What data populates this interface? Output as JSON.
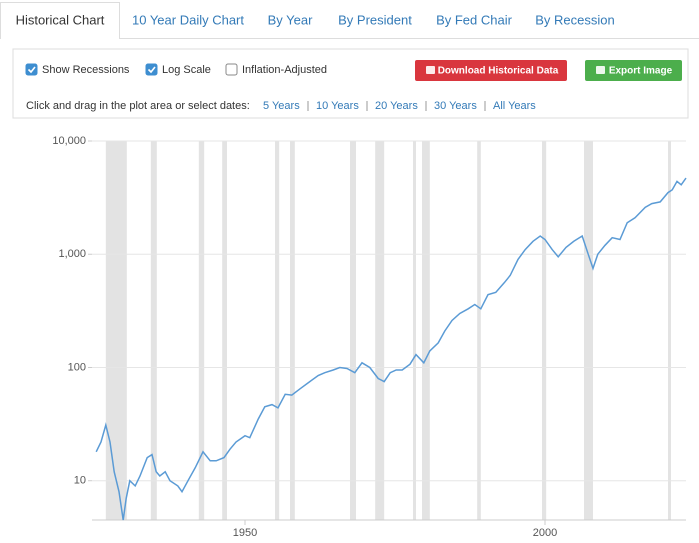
{
  "tabs": [
    "Historical Chart",
    "10 Year Daily Chart",
    "By Year",
    "By President",
    "By Fed Chair",
    "By Recession"
  ],
  "active_tab": 0,
  "controls": {
    "checkboxes": [
      {
        "label": "Show Recessions",
        "checked": true
      },
      {
        "label": "Log Scale",
        "checked": true
      },
      {
        "label": "Inflation-Adjusted",
        "checked": false
      }
    ],
    "buttons": [
      {
        "label": "Download Historical Data",
        "color": "#d9363e"
      },
      {
        "label": "Export Image",
        "color": "#4cae4c"
      }
    ],
    "date_prompt": "Click and drag in the plot area or select dates:",
    "date_ranges": [
      "5 Years",
      "10 Years",
      "20 Years",
      "30 Years",
      "All Years"
    ]
  },
  "chart_data": {
    "type": "line",
    "color": "#5b9bd5",
    "log_scale": true,
    "grid": true,
    "recession_color": "#e3e3e3",
    "xlim": [
      1924.5,
      2023.5
    ],
    "xticks": [
      1950,
      2000
    ],
    "ylim": [
      4.5,
      10000
    ],
    "yticks": [
      10,
      100,
      {
        "value": 1000,
        "label": "1,000"
      },
      {
        "value": 10000,
        "label": "10,000"
      }
    ],
    "recessions": [
      [
        1926.8,
        1930.3
      ],
      [
        1934.3,
        1935.3
      ],
      [
        1942.3,
        1943.2
      ],
      [
        1946.2,
        1947
      ],
      [
        1955,
        1955.7
      ],
      [
        1957.5,
        1958.3
      ],
      [
        1967.5,
        1968.5
      ],
      [
        1971.7,
        1973.2
      ],
      [
        1978,
        1978.5
      ],
      [
        1979.5,
        1980.8
      ],
      [
        1988.7,
        1989.3
      ],
      [
        1999.5,
        2000.2
      ],
      [
        2006.5,
        2008
      ],
      [
        2020.5,
        2021
      ]
    ],
    "x": [
      1925.2,
      1926,
      1926.8,
      1927.5,
      1928.2,
      1929,
      1929.7,
      1930.2,
      1930.8,
      1931.7,
      1932.5,
      1933.7,
      1934.5,
      1935.2,
      1935.8,
      1936.7,
      1937.5,
      1938.8,
      1939.5,
      1940.5,
      1941.7,
      1943,
      1944.2,
      1945.2,
      1946.5,
      1947.5,
      1948.5,
      1950,
      1950.8,
      1952.2,
      1953.3,
      1954.5,
      1955.5,
      1956.7,
      1957.8,
      1959.2,
      1960.8,
      1962.2,
      1963.3,
      1964.7,
      1965.8,
      1967,
      1968.3,
      1969.5,
      1970.8,
      1972.2,
      1973.2,
      1974.2,
      1975.2,
      1976.2,
      1977.5,
      1978.5,
      1979.8,
      1980.8,
      1982.2,
      1983.3,
      1984.5,
      1985.8,
      1987.2,
      1988.3,
      1989.3,
      1990.5,
      1991.8,
      1993.2,
      1994.2,
      1995.5,
      1996.7,
      1998,
      1999.2,
      2000,
      2001.2,
      2002.2,
      2003.5,
      2004.8,
      2006.2,
      2007.2,
      2008,
      2008.8,
      2010,
      2011.2,
      2012.5,
      2013.7,
      2015,
      2016.7,
      2017.8,
      2019.2,
      2020.5,
      2021.2,
      2022,
      2022.7,
      2023.5
    ],
    "values": [
      18,
      22,
      31,
      22,
      12,
      8,
      4.5,
      7,
      10,
      9,
      11,
      16,
      17,
      12,
      11,
      12,
      10,
      9,
      8,
      10,
      13,
      18,
      15,
      15,
      16,
      19,
      22,
      25,
      24,
      35,
      45,
      47,
      44,
      58,
      57,
      65,
      75,
      85,
      90,
      95,
      100,
      98,
      90,
      110,
      100,
      80,
      75,
      90,
      95,
      95,
      107,
      130,
      110,
      140,
      165,
      210,
      260,
      300,
      330,
      360,
      330,
      440,
      460,
      560,
      650,
      900,
      1100,
      1300,
      1450,
      1350,
      1100,
      950,
      1150,
      1300,
      1450,
      1000,
      750,
      1000,
      1200,
      1400,
      1350,
      1900,
      2100,
      2600,
      2800,
      2900,
      3500,
      3700,
      4400,
      4100,
      4700
    ]
  }
}
